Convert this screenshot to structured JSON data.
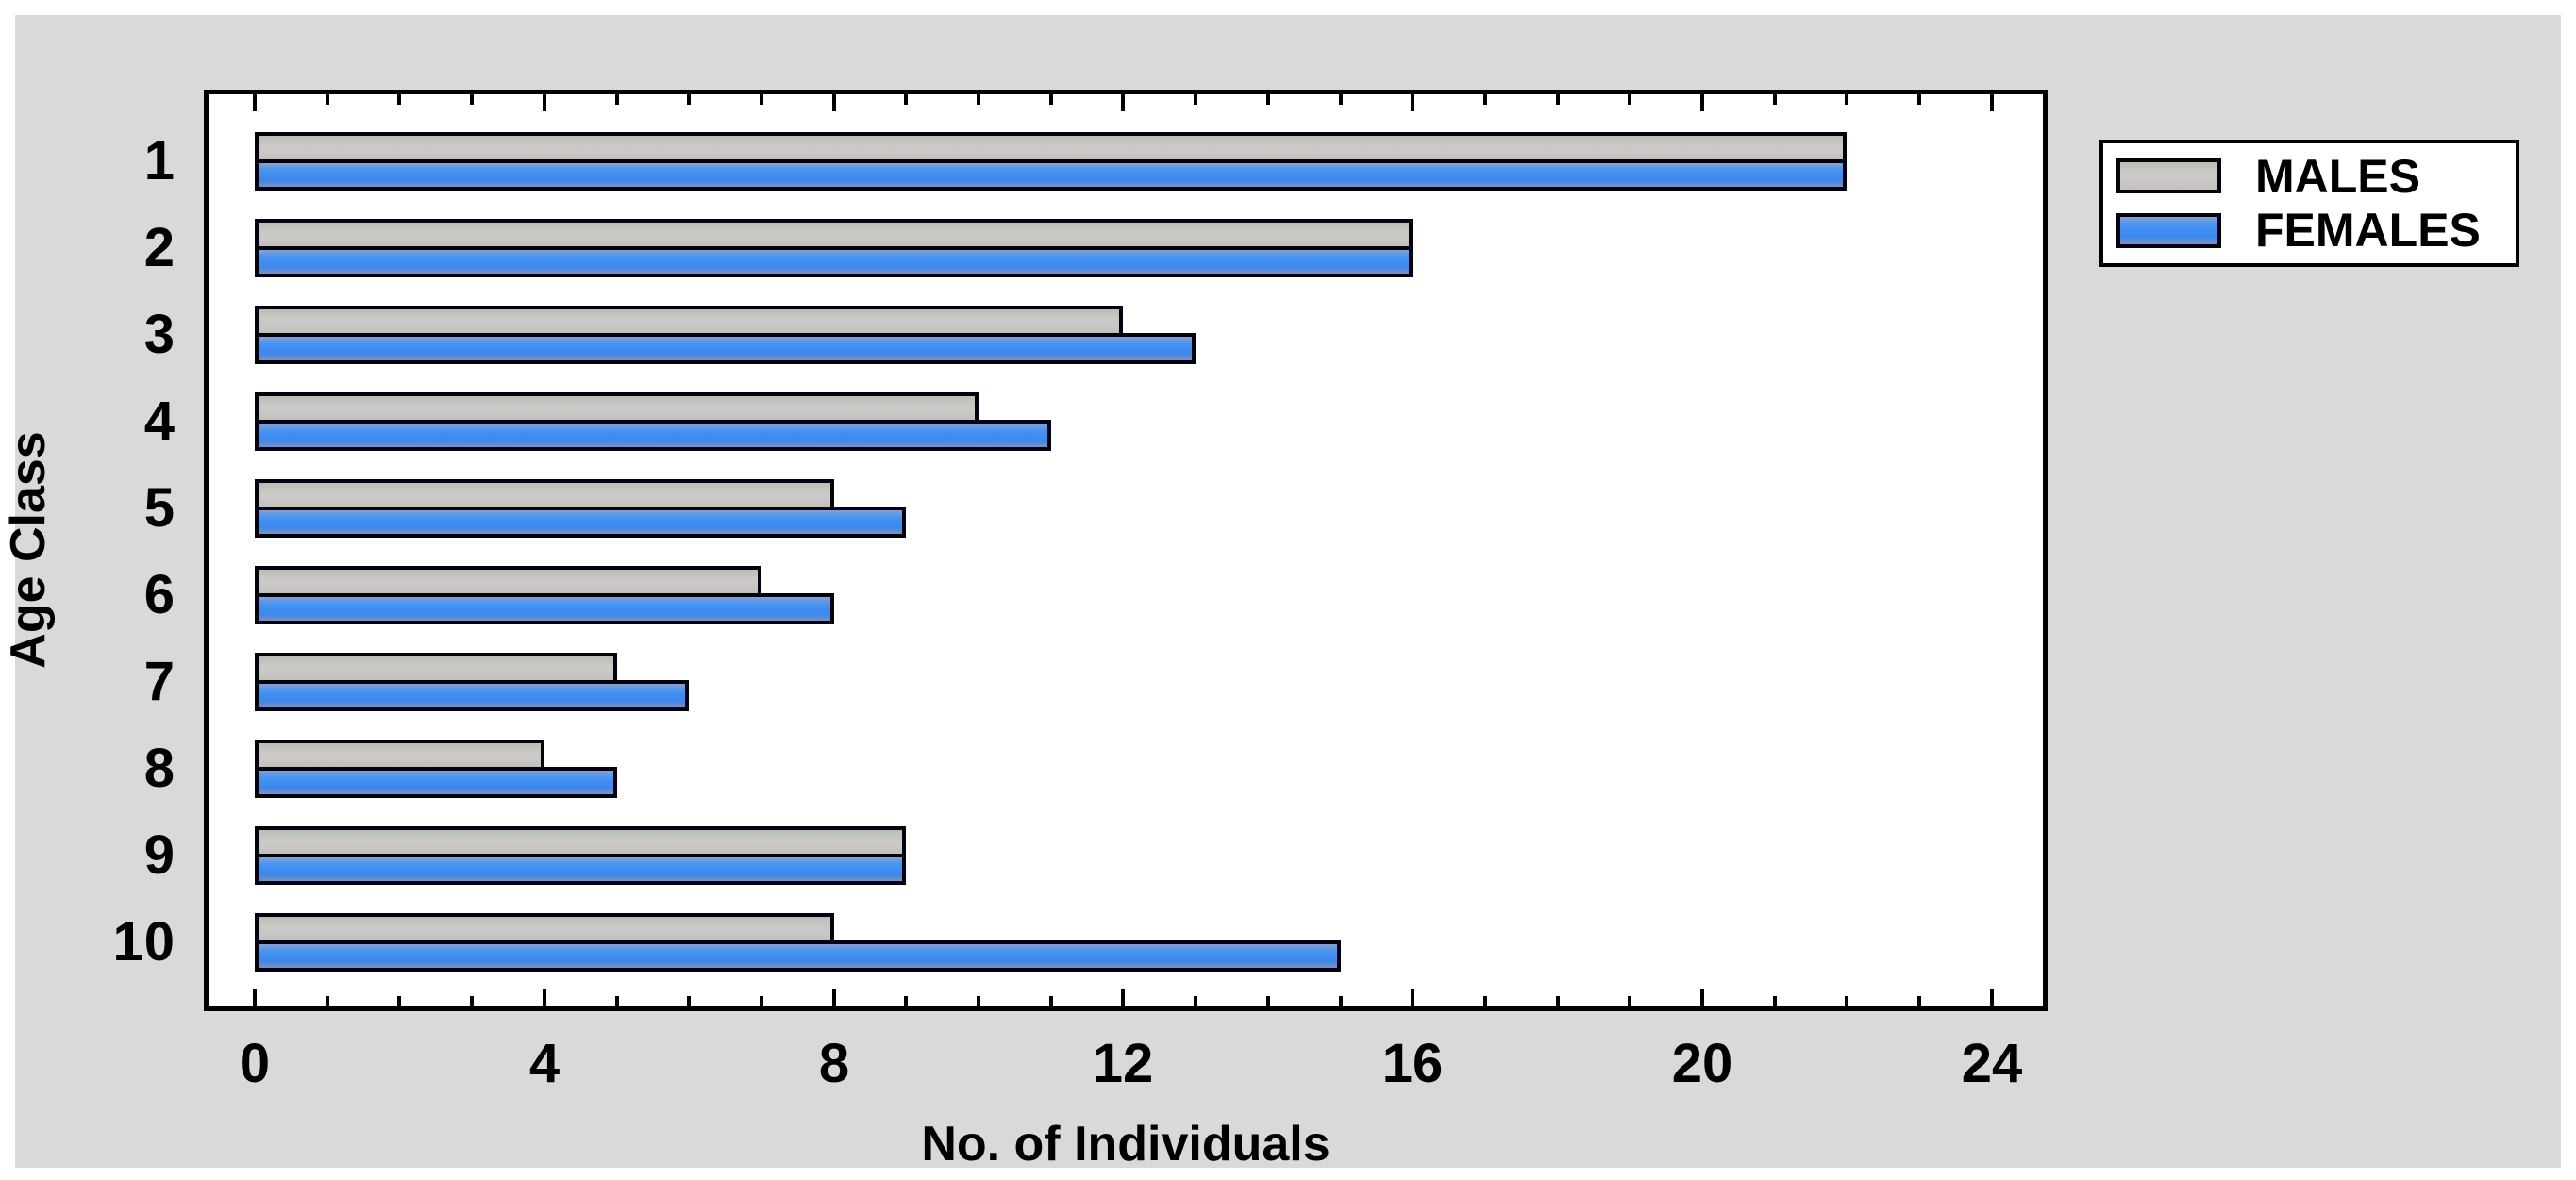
{
  "chart_data": {
    "type": "bar",
    "orientation": "horizontal",
    "title": "",
    "xlabel": "No. of Individuals",
    "ylabel": "Age Class",
    "categories": [
      "1",
      "2",
      "3",
      "4",
      "5",
      "6",
      "7",
      "8",
      "9",
      "10"
    ],
    "series": [
      {
        "name": "MALES",
        "color": "#c3c4bd",
        "values": [
          22,
          16,
          12,
          10,
          8,
          7,
          5,
          4,
          9,
          8
        ]
      },
      {
        "name": "FEMALES",
        "color": "#3e8cf0",
        "values": [
          22,
          16,
          13,
          11,
          9,
          8,
          6,
          5,
          9,
          15
        ]
      }
    ],
    "xlim": [
      0,
      24
    ],
    "xticks": [
      0,
      4,
      8,
      12,
      16,
      20,
      24
    ],
    "minor_tick_step": 1,
    "grid": false,
    "legend_position": "outside-top-right"
  },
  "colors": {
    "panel_background": "#d9d9d9",
    "plot_background": "#ffffff",
    "frame_border": "#000000",
    "males_bar": "#c3c4bd",
    "females_bar": "#3e8cf0",
    "text": "#000000"
  }
}
